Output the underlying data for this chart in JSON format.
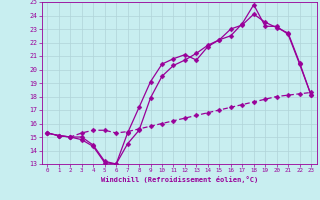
{
  "xlabel": "Windchill (Refroidissement éolien,°C)",
  "background_color": "#c8eef0",
  "grid_color": "#b0d4d8",
  "line_color": "#990099",
  "xlim": [
    -0.5,
    23.5
  ],
  "ylim": [
    13,
    25
  ],
  "xticks": [
    0,
    1,
    2,
    3,
    4,
    5,
    6,
    7,
    8,
    9,
    10,
    11,
    12,
    13,
    14,
    15,
    16,
    17,
    18,
    19,
    20,
    21,
    22,
    23
  ],
  "yticks": [
    13,
    14,
    15,
    16,
    17,
    18,
    19,
    20,
    21,
    22,
    23,
    24,
    25
  ],
  "line1_x": [
    0,
    1,
    2,
    3,
    4,
    5,
    6,
    7,
    8,
    9,
    10,
    11,
    12,
    13,
    14,
    15,
    16,
    17,
    18,
    19,
    20,
    21,
    22,
    23
  ],
  "line1_y": [
    15.3,
    15.1,
    15.0,
    14.8,
    14.3,
    13.1,
    13.0,
    15.3,
    17.2,
    19.1,
    20.4,
    20.8,
    21.1,
    20.7,
    21.7,
    22.2,
    22.5,
    23.4,
    24.8,
    23.2,
    23.2,
    22.6,
    20.4,
    18.1
  ],
  "line2_x": [
    0,
    1,
    2,
    3,
    4,
    5,
    6,
    7,
    8,
    9,
    10,
    11,
    12,
    13,
    14,
    15,
    16,
    17,
    18,
    19,
    20,
    21,
    22,
    23
  ],
  "line2_y": [
    15.3,
    15.1,
    15.0,
    15.0,
    14.4,
    13.2,
    13.0,
    14.5,
    15.5,
    17.9,
    19.5,
    20.3,
    20.7,
    21.2,
    21.8,
    22.2,
    23.0,
    23.3,
    24.1,
    23.5,
    23.1,
    22.7,
    20.5,
    18.1
  ],
  "line3_x": [
    0,
    1,
    2,
    3,
    4,
    5,
    6,
    7,
    8,
    9,
    10,
    11,
    12,
    13,
    14,
    15,
    16,
    17,
    18,
    19,
    20,
    21,
    22,
    23
  ],
  "line3_y": [
    15.3,
    15.1,
    15.0,
    15.3,
    15.5,
    15.5,
    15.3,
    15.4,
    15.6,
    15.8,
    16.0,
    16.2,
    16.4,
    16.6,
    16.8,
    17.0,
    17.2,
    17.4,
    17.6,
    17.8,
    18.0,
    18.1,
    18.2,
    18.3
  ],
  "markersize": 2.5,
  "linewidth": 0.9
}
